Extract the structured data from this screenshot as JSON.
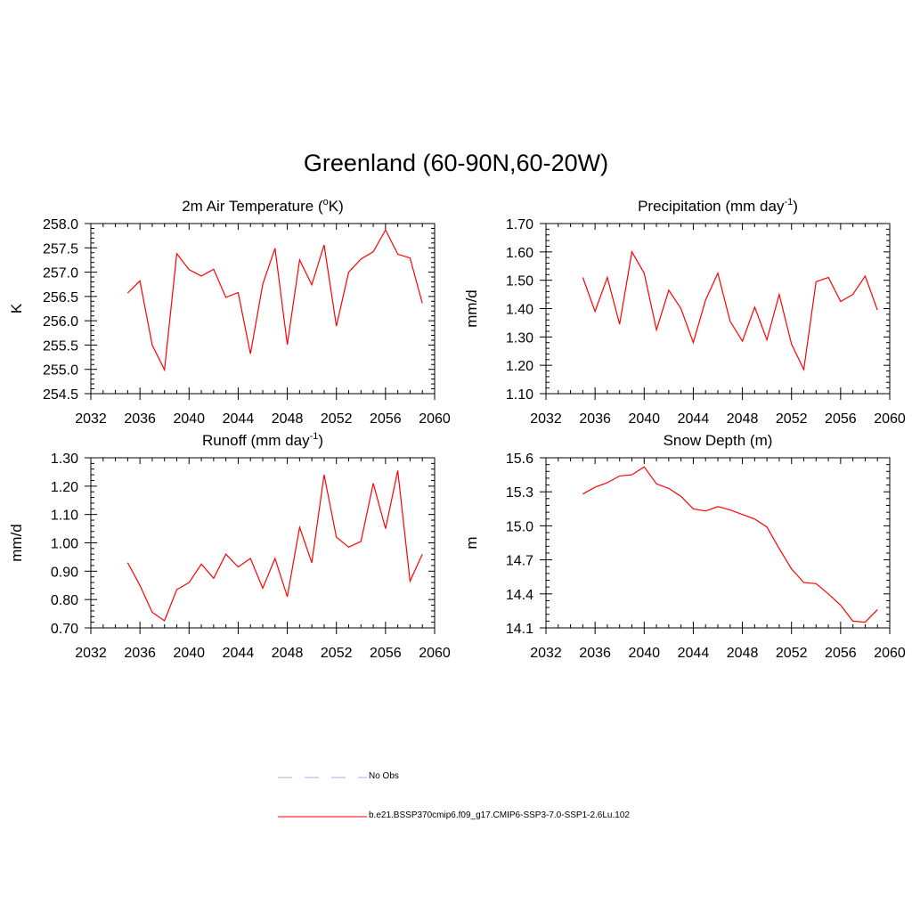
{
  "page_title": "Greenland (60-90N,60-20W)",
  "legend": [
    {
      "label": "No Obs",
      "color": "#aaaaee",
      "dashed": true
    },
    {
      "label": "b.e21.BSSP370cmip6.f09_g17.CMIP6-SSP3-7.0-SSP1-2.6Lu.102",
      "color": "#ff0000",
      "dashed": false
    }
  ],
  "chart_data": [
    {
      "type": "line",
      "title": "2m Air Temperature (",
      "title_sup": "o",
      "title_after": "K)",
      "ylabel": "K",
      "xlim": [
        2032,
        2060
      ],
      "ylim": [
        254.5,
        258.0
      ],
      "x_ticks": [
        2032,
        2036,
        2040,
        2044,
        2048,
        2052,
        2056,
        2060
      ],
      "y_ticks": [
        "254.5",
        "255.0",
        "255.5",
        "256.0",
        "256.5",
        "257.0",
        "257.5",
        "258.0"
      ],
      "series": [
        {
          "color": "#ff0000",
          "x": [
            2035,
            2036,
            2037,
            2038,
            2039,
            2040,
            2041,
            2042,
            2043,
            2044,
            2045,
            2046,
            2047,
            2048,
            2049,
            2050,
            2051,
            2052,
            2053,
            2054,
            2055,
            2056,
            2057,
            2058,
            2059
          ],
          "values": [
            256.57,
            256.82,
            255.5,
            254.99,
            257.38,
            257.05,
            256.92,
            257.06,
            256.48,
            256.58,
            255.32,
            256.75,
            257.49,
            255.51,
            257.25,
            256.74,
            257.56,
            255.89,
            257.0,
            257.27,
            257.42,
            257.87,
            257.37,
            257.29,
            256.36
          ]
        }
      ]
    },
    {
      "type": "line",
      "title": "Precipitation (mm day",
      "title_sup": "-1",
      "title_after": ")",
      "ylabel": "mm/d",
      "xlim": [
        2032,
        2060
      ],
      "ylim": [
        1.1,
        1.7
      ],
      "x_ticks": [
        2032,
        2036,
        2040,
        2044,
        2048,
        2052,
        2056,
        2060
      ],
      "y_ticks": [
        "1.10",
        "1.20",
        "1.30",
        "1.40",
        "1.50",
        "1.60",
        "1.70"
      ],
      "series": [
        {
          "color": "#ff0000",
          "x": [
            2035,
            2036,
            2037,
            2038,
            2039,
            2040,
            2041,
            2042,
            2043,
            2044,
            2045,
            2046,
            2047,
            2048,
            2049,
            2050,
            2051,
            2052,
            2053,
            2054,
            2055,
            2056,
            2057,
            2058,
            2059
          ],
          "values": [
            1.51,
            1.39,
            1.51,
            1.345,
            1.6,
            1.525,
            1.325,
            1.465,
            1.4,
            1.28,
            1.43,
            1.525,
            1.355,
            1.285,
            1.405,
            1.29,
            1.45,
            1.275,
            1.185,
            1.495,
            1.51,
            1.425,
            1.45,
            1.515,
            1.395
          ]
        }
      ]
    },
    {
      "type": "line",
      "title": "Runoff (mm day",
      "title_sup": "-1",
      "title_after": ")",
      "ylabel": "mm/d",
      "xlim": [
        2032,
        2060
      ],
      "ylim": [
        0.7,
        1.3
      ],
      "x_ticks": [
        2032,
        2036,
        2040,
        2044,
        2048,
        2052,
        2056,
        2060
      ],
      "y_ticks": [
        "0.70",
        "0.80",
        "0.90",
        "1.00",
        "1.10",
        "1.20",
        "1.30"
      ],
      "series": [
        {
          "color": "#ff0000",
          "x": [
            2035,
            2036,
            2037,
            2038,
            2039,
            2040,
            2041,
            2042,
            2043,
            2044,
            2045,
            2046,
            2047,
            2048,
            2049,
            2050,
            2051,
            2052,
            2053,
            2054,
            2055,
            2056,
            2057,
            2058,
            2059
          ],
          "values": [
            0.93,
            0.85,
            0.755,
            0.725,
            0.835,
            0.86,
            0.925,
            0.875,
            0.96,
            0.915,
            0.945,
            0.84,
            0.945,
            0.81,
            1.055,
            0.93,
            1.24,
            1.02,
            0.985,
            1.005,
            1.21,
            1.05,
            1.255,
            0.865,
            0.96
          ]
        }
      ]
    },
    {
      "type": "line",
      "title": "Snow Depth (m)",
      "title_sup": "",
      "title_after": "",
      "ylabel": "m",
      "xlim": [
        2032,
        2060
      ],
      "ylim": [
        14.1,
        15.6
      ],
      "x_ticks": [
        2032,
        2036,
        2040,
        2044,
        2048,
        2052,
        2056,
        2060
      ],
      "y_ticks": [
        "14.1",
        "14.4",
        "14.7",
        "15.0",
        "15.3",
        "15.6"
      ],
      "series": [
        {
          "color": "#ff0000",
          "x": [
            2035,
            2036,
            2037,
            2038,
            2039,
            2040,
            2041,
            2042,
            2043,
            2044,
            2045,
            2046,
            2047,
            2048,
            2049,
            2050,
            2051,
            2052,
            2053,
            2054,
            2055,
            2056,
            2057,
            2058,
            2059
          ],
          "values": [
            15.28,
            15.34,
            15.38,
            15.44,
            15.45,
            15.52,
            15.37,
            15.33,
            15.26,
            15.15,
            15.13,
            15.17,
            15.14,
            15.1,
            15.06,
            14.99,
            14.8,
            14.62,
            14.5,
            14.49,
            14.4,
            14.3,
            14.16,
            14.15,
            14.26
          ]
        }
      ]
    }
  ]
}
